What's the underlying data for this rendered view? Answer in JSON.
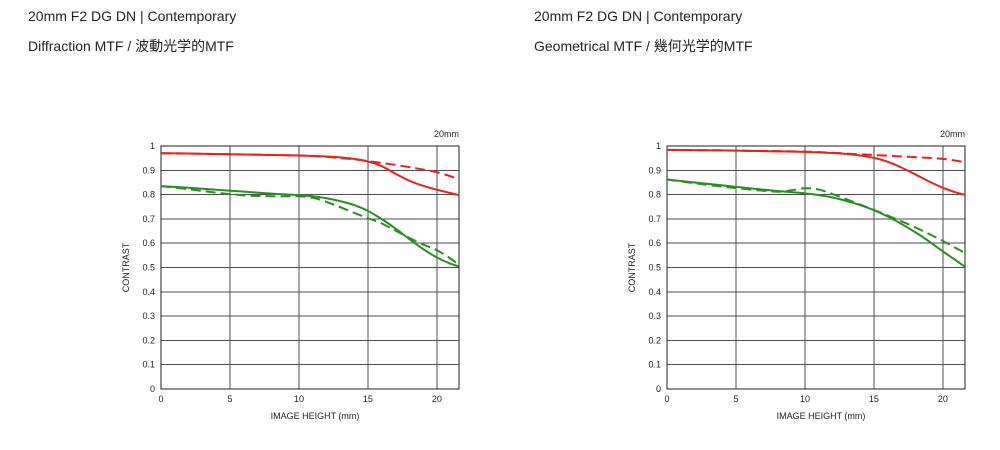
{
  "chart_data": [
    {
      "type": "line",
      "title": "20mm F2 DG DN | Contemporary",
      "subtitle": "Diffraction MTF / 波動光学的MTF",
      "annotation": "20mm",
      "xlabel": "IMAGE HEIGHT (mm)",
      "ylabel": "CONTRAST",
      "xlim": [
        0,
        21.6
      ],
      "ylim": [
        0,
        1
      ],
      "xticks": [
        0,
        5,
        10,
        15,
        20
      ],
      "yticks": [
        0,
        0.1,
        0.2,
        0.3,
        0.4,
        0.5,
        0.6,
        0.7,
        0.8,
        0.9,
        1
      ],
      "grid": true,
      "x": [
        0,
        2,
        4,
        6,
        8,
        9,
        10,
        11,
        12,
        13,
        14,
        15,
        16,
        17,
        18,
        19,
        20,
        21,
        21.6
      ],
      "series": [
        {
          "color": "#e2241f",
          "dashed": false,
          "y": [
            0.97,
            0.969,
            0.967,
            0.965,
            0.963,
            0.962,
            0.961,
            0.959,
            0.957,
            0.953,
            0.947,
            0.936,
            0.917,
            0.886,
            0.857,
            0.836,
            0.82,
            0.806,
            0.798
          ]
        },
        {
          "color": "#e2241f",
          "dashed": true,
          "y": [
            0.97,
            0.969,
            0.967,
            0.965,
            0.963,
            0.962,
            0.961,
            0.959,
            0.955,
            0.95,
            0.945,
            0.938,
            0.93,
            0.922,
            0.913,
            0.903,
            0.892,
            0.875,
            0.862
          ]
        },
        {
          "color": "#2b8c24",
          "dashed": false,
          "y": [
            0.835,
            0.828,
            0.82,
            0.812,
            0.804,
            0.801,
            0.798,
            0.793,
            0.785,
            0.773,
            0.757,
            0.733,
            0.699,
            0.66,
            0.617,
            0.576,
            0.541,
            0.515,
            0.505
          ]
        },
        {
          "color": "#2b8c24",
          "dashed": true,
          "y": [
            0.835,
            0.822,
            0.808,
            0.797,
            0.793,
            0.793,
            0.793,
            0.787,
            0.77,
            0.748,
            0.725,
            0.703,
            0.681,
            0.652,
            0.622,
            0.595,
            0.571,
            0.536,
            0.51
          ]
        }
      ]
    },
    {
      "type": "line",
      "title": "20mm F2 DG DN | Contemporary",
      "subtitle": "Geometrical MTF / 幾何光学的MTF",
      "annotation": "20mm",
      "xlabel": "IMAGE HEIGHT (mm)",
      "ylabel": "CONTRAST",
      "xlim": [
        0,
        21.6
      ],
      "ylim": [
        0,
        1
      ],
      "xticks": [
        0,
        5,
        10,
        15,
        20
      ],
      "yticks": [
        0,
        0.1,
        0.2,
        0.3,
        0.4,
        0.5,
        0.6,
        0.7,
        0.8,
        0.9,
        1
      ],
      "grid": true,
      "x": [
        0,
        2,
        4,
        6,
        8,
        9,
        10,
        11,
        12,
        13,
        14,
        15,
        16,
        17,
        18,
        19,
        20,
        21,
        21.6
      ],
      "series": [
        {
          "color": "#e2241f",
          "dashed": false,
          "y": [
            0.984,
            0.983,
            0.982,
            0.98,
            0.978,
            0.977,
            0.976,
            0.974,
            0.971,
            0.967,
            0.961,
            0.951,
            0.935,
            0.911,
            0.883,
            0.854,
            0.828,
            0.808,
            0.799
          ]
        },
        {
          "color": "#e2241f",
          "dashed": true,
          "y": [
            0.984,
            0.983,
            0.982,
            0.98,
            0.979,
            0.978,
            0.977,
            0.975,
            0.972,
            0.969,
            0.966,
            0.963,
            0.96,
            0.957,
            0.954,
            0.951,
            0.947,
            0.939,
            0.932
          ]
        },
        {
          "color": "#2b8c24",
          "dashed": false,
          "y": [
            0.862,
            0.85,
            0.838,
            0.826,
            0.815,
            0.81,
            0.805,
            0.798,
            0.788,
            0.774,
            0.757,
            0.736,
            0.71,
            0.679,
            0.645,
            0.607,
            0.566,
            0.527,
            0.503
          ]
        },
        {
          "color": "#2b8c24",
          "dashed": true,
          "y": [
            0.862,
            0.847,
            0.833,
            0.821,
            0.812,
            0.818,
            0.826,
            0.821,
            0.802,
            0.781,
            0.759,
            0.737,
            0.714,
            0.69,
            0.665,
            0.638,
            0.609,
            0.578,
            0.56
          ]
        }
      ]
    }
  ]
}
